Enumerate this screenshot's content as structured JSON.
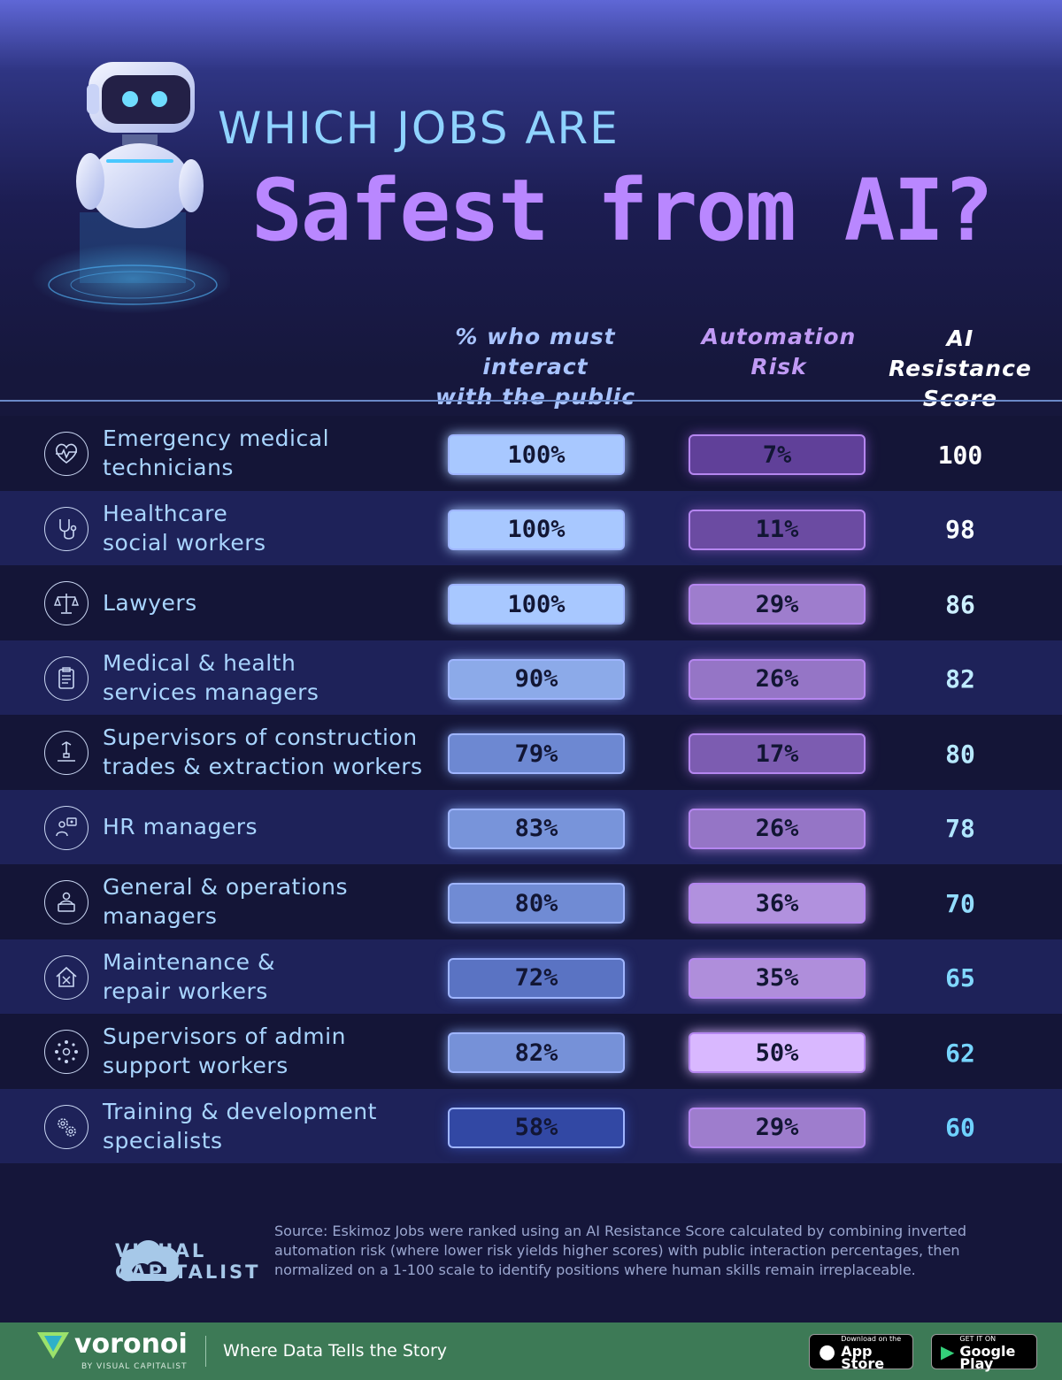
{
  "title": {
    "line1": "WHICH JOBS ARE",
    "line2": "Safest from AI?"
  },
  "headers": {
    "public_line1": "% who must interact",
    "public_line2": "with the public",
    "risk_line1": "Automation",
    "risk_line2": "Risk",
    "score_line1": "AI Resistance",
    "score_line2": "Score"
  },
  "chart_data": {
    "type": "table",
    "columns": [
      "% who must interact with the public",
      "Automation Risk",
      "AI Resistance Score"
    ],
    "rows": [
      {
        "job": [
          "Emergency medical",
          "technicians"
        ],
        "icon": "heartbeat-icon",
        "public": "100%",
        "public_value": 100,
        "risk": "7%",
        "risk_value": 7,
        "score": "100"
      },
      {
        "job": [
          "Healthcare",
          "social workers"
        ],
        "icon": "stethoscope-icon",
        "public": "100%",
        "public_value": 100,
        "risk": "11%",
        "risk_value": 11,
        "score": "98"
      },
      {
        "job": [
          "Lawyers"
        ],
        "icon": "scales-icon",
        "public": "100%",
        "public_value": 100,
        "risk": "29%",
        "risk_value": 29,
        "score": "86"
      },
      {
        "job": [
          "Medical & health",
          "services managers"
        ],
        "icon": "clipboard-icon",
        "public": "90%",
        "public_value": 90,
        "risk": "26%",
        "risk_value": 26,
        "score": "82"
      },
      {
        "job": [
          "Supervisors of construction",
          "trades & extraction workers"
        ],
        "icon": "crane-icon",
        "public": "79%",
        "public_value": 79,
        "risk": "17%",
        "risk_value": 17,
        "score": "80"
      },
      {
        "job": [
          "HR managers"
        ],
        "icon": "people-icon",
        "public": "83%",
        "public_value": 83,
        "risk": "26%",
        "risk_value": 26,
        "score": "78"
      },
      {
        "job": [
          "General & operations",
          "managers"
        ],
        "icon": "laptop-person-icon",
        "public": "80%",
        "public_value": 80,
        "risk": "36%",
        "risk_value": 36,
        "score": "70"
      },
      {
        "job": [
          "Maintenance &",
          "repair workers"
        ],
        "icon": "house-tools-icon",
        "public": "72%",
        "public_value": 72,
        "risk": "35%",
        "risk_value": 35,
        "score": "65"
      },
      {
        "job": [
          "Supervisors of admin",
          "support workers"
        ],
        "icon": "network-icon",
        "public": "82%",
        "public_value": 82,
        "risk": "50%",
        "risk_value": 50,
        "score": "62"
      },
      {
        "job": [
          "Training & development",
          "specialists"
        ],
        "icon": "gears-icon",
        "public": "58%",
        "public_value": 58,
        "risk": "29%",
        "risk_value": 29,
        "score": "60"
      }
    ]
  },
  "footer": {
    "brand_line1": "VISUAL",
    "brand_line2": "CAPITALIST",
    "source": "Source: Eskimoz Jobs were ranked using an AI Resistance Score calculated by combining inverted automation risk (where lower risk yields higher scores) with public interaction percentages, then normalized on a 1-100 scale to identify positions where human skills remain irreplaceable.",
    "voronoi": "voronoi",
    "voronoi_sub": "BY VISUAL CAPITALIST",
    "tagline": "Where Data Tells the Story",
    "appstore_small": "Download on the",
    "appstore_big": "App Store",
    "googleplay_small": "GET IT ON",
    "googleplay_big": "Google Play"
  },
  "colors": {
    "title_top": "#8fd3ff",
    "title_main": "#b987ff",
    "job_text": "#a9d5ff",
    "public_high": "#a8c8ff",
    "public_low": "#2a3f9e",
    "risk_low": "#5a3a94",
    "risk_high": "#d9b8ff",
    "score_high": "#ffffff",
    "score_low": "#6fd2ff"
  }
}
